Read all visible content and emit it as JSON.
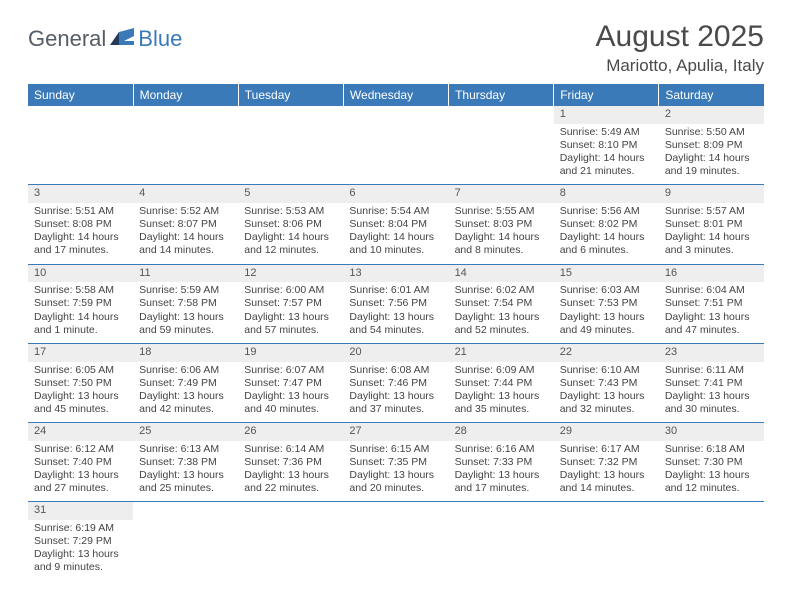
{
  "brand": {
    "general": "General",
    "blue": "Blue"
  },
  "title": "August 2025",
  "location": "Mariotto, Apulia, Italy",
  "colors": {
    "header_bg": "#3a7ab8",
    "header_fg": "#ffffff",
    "daynum_bg": "#eeeeee",
    "rule": "#3a7ab8",
    "text": "#444444",
    "logo_gray": "#555d66",
    "logo_blue": "#3a7ab8"
  },
  "weekdays": [
    "Sunday",
    "Monday",
    "Tuesday",
    "Wednesday",
    "Thursday",
    "Friday",
    "Saturday"
  ],
  "weeks": [
    [
      null,
      null,
      null,
      null,
      null,
      {
        "n": "1",
        "sr": "5:49 AM",
        "ss": "8:10 PM",
        "dl": "14 hours and 21 minutes."
      },
      {
        "n": "2",
        "sr": "5:50 AM",
        "ss": "8:09 PM",
        "dl": "14 hours and 19 minutes."
      }
    ],
    [
      {
        "n": "3",
        "sr": "5:51 AM",
        "ss": "8:08 PM",
        "dl": "14 hours and 17 minutes."
      },
      {
        "n": "4",
        "sr": "5:52 AM",
        "ss": "8:07 PM",
        "dl": "14 hours and 14 minutes."
      },
      {
        "n": "5",
        "sr": "5:53 AM",
        "ss": "8:06 PM",
        "dl": "14 hours and 12 minutes."
      },
      {
        "n": "6",
        "sr": "5:54 AM",
        "ss": "8:04 PM",
        "dl": "14 hours and 10 minutes."
      },
      {
        "n": "7",
        "sr": "5:55 AM",
        "ss": "8:03 PM",
        "dl": "14 hours and 8 minutes."
      },
      {
        "n": "8",
        "sr": "5:56 AM",
        "ss": "8:02 PM",
        "dl": "14 hours and 6 minutes."
      },
      {
        "n": "9",
        "sr": "5:57 AM",
        "ss": "8:01 PM",
        "dl": "14 hours and 3 minutes."
      }
    ],
    [
      {
        "n": "10",
        "sr": "5:58 AM",
        "ss": "7:59 PM",
        "dl": "14 hours and 1 minute."
      },
      {
        "n": "11",
        "sr": "5:59 AM",
        "ss": "7:58 PM",
        "dl": "13 hours and 59 minutes."
      },
      {
        "n": "12",
        "sr": "6:00 AM",
        "ss": "7:57 PM",
        "dl": "13 hours and 57 minutes."
      },
      {
        "n": "13",
        "sr": "6:01 AM",
        "ss": "7:56 PM",
        "dl": "13 hours and 54 minutes."
      },
      {
        "n": "14",
        "sr": "6:02 AM",
        "ss": "7:54 PM",
        "dl": "13 hours and 52 minutes."
      },
      {
        "n": "15",
        "sr": "6:03 AM",
        "ss": "7:53 PM",
        "dl": "13 hours and 49 minutes."
      },
      {
        "n": "16",
        "sr": "6:04 AM",
        "ss": "7:51 PM",
        "dl": "13 hours and 47 minutes."
      }
    ],
    [
      {
        "n": "17",
        "sr": "6:05 AM",
        "ss": "7:50 PM",
        "dl": "13 hours and 45 minutes."
      },
      {
        "n": "18",
        "sr": "6:06 AM",
        "ss": "7:49 PM",
        "dl": "13 hours and 42 minutes."
      },
      {
        "n": "19",
        "sr": "6:07 AM",
        "ss": "7:47 PM",
        "dl": "13 hours and 40 minutes."
      },
      {
        "n": "20",
        "sr": "6:08 AM",
        "ss": "7:46 PM",
        "dl": "13 hours and 37 minutes."
      },
      {
        "n": "21",
        "sr": "6:09 AM",
        "ss": "7:44 PM",
        "dl": "13 hours and 35 minutes."
      },
      {
        "n": "22",
        "sr": "6:10 AM",
        "ss": "7:43 PM",
        "dl": "13 hours and 32 minutes."
      },
      {
        "n": "23",
        "sr": "6:11 AM",
        "ss": "7:41 PM",
        "dl": "13 hours and 30 minutes."
      }
    ],
    [
      {
        "n": "24",
        "sr": "6:12 AM",
        "ss": "7:40 PM",
        "dl": "13 hours and 27 minutes."
      },
      {
        "n": "25",
        "sr": "6:13 AM",
        "ss": "7:38 PM",
        "dl": "13 hours and 25 minutes."
      },
      {
        "n": "26",
        "sr": "6:14 AM",
        "ss": "7:36 PM",
        "dl": "13 hours and 22 minutes."
      },
      {
        "n": "27",
        "sr": "6:15 AM",
        "ss": "7:35 PM",
        "dl": "13 hours and 20 minutes."
      },
      {
        "n": "28",
        "sr": "6:16 AM",
        "ss": "7:33 PM",
        "dl": "13 hours and 17 minutes."
      },
      {
        "n": "29",
        "sr": "6:17 AM",
        "ss": "7:32 PM",
        "dl": "13 hours and 14 minutes."
      },
      {
        "n": "30",
        "sr": "6:18 AM",
        "ss": "7:30 PM",
        "dl": "13 hours and 12 minutes."
      }
    ],
    [
      {
        "n": "31",
        "sr": "6:19 AM",
        "ss": "7:29 PM",
        "dl": "13 hours and 9 minutes."
      },
      null,
      null,
      null,
      null,
      null,
      null
    ]
  ],
  "labels": {
    "sunrise": "Sunrise:",
    "sunset": "Sunset:",
    "daylight": "Daylight:"
  }
}
